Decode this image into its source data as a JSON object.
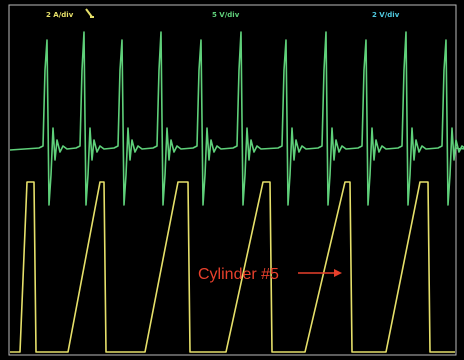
{
  "header": {
    "channel_a_scale": "2 A/div",
    "channel_b_scale": "5 V/div",
    "channel_c_scale": "2 V/div"
  },
  "annotation": {
    "label": "Cylinder #5"
  }
}
